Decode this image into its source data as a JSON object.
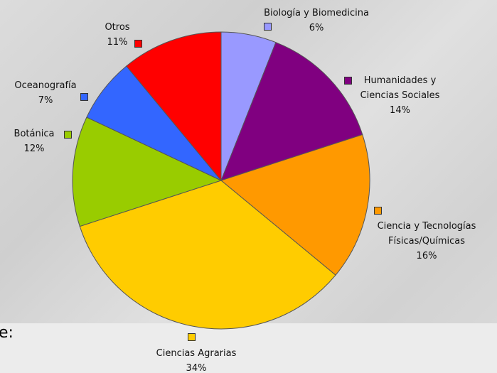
{
  "chart_data": {
    "type": "pie",
    "categories": [
      "Biología y Biomedicina",
      "Humanidades y Ciencias Sociales",
      "Ciencia y Tecnologías Físicas/Químicas",
      "Ciencias Agrarias",
      "Botánica",
      "Oceanografía",
      "Otros"
    ],
    "values": [
      6,
      14,
      16,
      34,
      12,
      7,
      11
    ],
    "value_labels": [
      "6%",
      "14%",
      "16%",
      "34%",
      "12%",
      "7%",
      "11%"
    ],
    "colors": [
      "#9999ff",
      "#800080",
      "#ff9900",
      "#ffcc00",
      "#99cc00",
      "#3366ff",
      "#ff0000"
    ]
  },
  "fragment": "e:"
}
